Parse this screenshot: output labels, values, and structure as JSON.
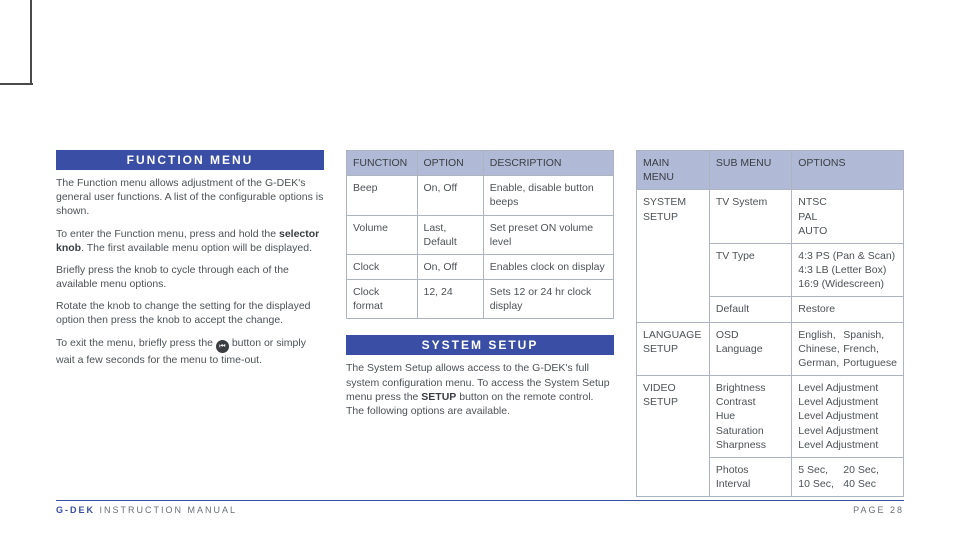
{
  "headers": {
    "function_menu": "FUNCTION MENU",
    "system_setup": "SYSTEM SETUP"
  },
  "paragraphs": {
    "fm_intro": "The Function menu allows adjustment of the G-DEK's general user functions. A list of the configurable options is shown.",
    "fm_enter_a": "To enter the Function menu, press and hold the ",
    "fm_enter_b": "selector knob",
    "fm_enter_c": ". The first available menu option will be displayed.",
    "fm_cycle": "Briefly press the knob to cycle through each of the available menu options.",
    "fm_rotate": "Rotate the knob to change the setting for the displayed option then press the knob to accept the change.",
    "fm_exit_a": "To exit the menu, briefly press the ",
    "fm_exit_b": " button or simply wait a few seconds for the menu to time-out.",
    "ss_intro_a": "The System Setup allows access to the G-DEK's full system configuration menu. To access the System Setup menu press the ",
    "ss_intro_b": "SETUP",
    "ss_intro_c": " button on the remote control. The following options are available."
  },
  "function_table": {
    "headers": [
      "FUNCTION",
      "OPTION",
      "DESCRIPTION"
    ],
    "rows": [
      [
        "Beep",
        "On, Off",
        "Enable, disable button beeps"
      ],
      [
        "Volume",
        "Last, Default",
        "Set preset ON volume level"
      ],
      [
        "Clock",
        "On, Off",
        "Enables clock on display"
      ],
      [
        "Clock format",
        "12, 24",
        "Sets 12 or 24 hr clock display"
      ]
    ]
  },
  "setup_table": {
    "headers": [
      "MAIN MENU",
      "SUB MENU",
      "OPTIONS"
    ],
    "rows": [
      {
        "main": "SYSTEM SETUP",
        "sub": "TV System",
        "opt": "NTSC\nPAL\nAUTO",
        "rowspan": 3
      },
      {
        "sub": "TV Type",
        "opt": "4:3 PS (Pan & Scan)\n4:3 LB (Letter Box)\n16:9 (Widescreen)"
      },
      {
        "sub": "Default",
        "opt": "Restore"
      },
      {
        "main": "LANGUAGE SETUP",
        "sub": "OSD Language",
        "opt_cols": [
          [
            "English,",
            "Spanish,"
          ],
          [
            "Chinese,",
            "French,"
          ],
          [
            "German,",
            "Portuguese"
          ]
        ],
        "rowspan": 1
      },
      {
        "main": "VIDEO SETUP",
        "sub": "Brightness\nContrast\nHue\nSaturation\nSharpness",
        "opt": "Level Adjustment\nLevel Adjustment\nLevel Adjustment\nLevel Adjustment\nLevel Adjustment",
        "rowspan": 2
      },
      {
        "sub": "Photos Interval",
        "opt_cols": [
          [
            "5 Sec,",
            "20 Sec,"
          ],
          [
            "10 Sec,",
            "40 Sec"
          ]
        ]
      }
    ]
  },
  "footer": {
    "brand": "G-DEK",
    "left": " INSTRUCTION MANUAL",
    "right": "PAGE 28"
  },
  "colors": {
    "header_bg": "#3a4ea6",
    "th_bg": "#b0b9d6",
    "border": "#aeb4bf",
    "text": "#4d5257"
  }
}
